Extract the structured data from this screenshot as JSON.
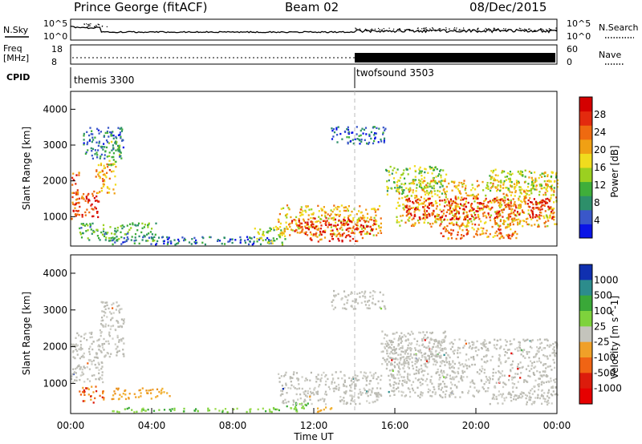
{
  "header": {
    "station": "Prince George (fitACF)",
    "beam": "Beam 02",
    "date": "08/Dec/2015"
  },
  "top_panels": {
    "nsky": {
      "label": "N.Sky",
      "tick_labels": [
        "10^5",
        "10^0"
      ],
      "right_label": "N.Search",
      "right_tick_labels": [
        "10^5",
        "10^0"
      ]
    },
    "freq": {
      "label_lines": [
        "Freq",
        "[MHz]"
      ],
      "tick_labels": [
        "18",
        "8"
      ],
      "right_label": "Nave",
      "right_tick_labels": [
        "60",
        "0"
      ]
    },
    "cpid": {
      "label": "CPID",
      "modes": [
        {
          "name": "themis 3300",
          "start_hour": 0,
          "end_hour": 14
        },
        {
          "name": "twofsound 3503",
          "start_hour": 14,
          "end_hour": 24
        }
      ]
    }
  },
  "chart_data": [
    {
      "type": "heatmap",
      "title": "",
      "quantity": "Power",
      "xlabel": "",
      "ylabel": "Slant Range [km]",
      "xlim": [
        0,
        24
      ],
      "ylim": [
        180,
        4500
      ],
      "y_ticks": [
        1000,
        2000,
        3000,
        4000
      ],
      "colorbar": {
        "label": "Power [dB]",
        "range": [
          0,
          32
        ],
        "tick_labels": [
          "4",
          "8",
          "12",
          "16",
          "20",
          "24",
          "28"
        ],
        "colors": [
          "#0a14e6",
          "#3a57c9",
          "#2d8f6a",
          "#3fae3a",
          "#9bd020",
          "#f0dc1e",
          "#f0a014",
          "#ef6a10",
          "#e32a0e",
          "#d40000"
        ]
      },
      "regions": [
        {
          "t": [
            0.0,
            0.4
          ],
          "r": [
            900,
            2300
          ],
          "v": 24
        },
        {
          "t": [
            0.2,
            1.4
          ],
          "r": [
            950,
            1700
          ],
          "v": 27
        },
        {
          "t": [
            1.2,
            2.2
          ],
          "r": [
            1600,
            2500
          ],
          "v": 21
        },
        {
          "t": [
            1.8,
            2.4
          ],
          "r": [
            2400,
            3100
          ],
          "v": 14
        },
        {
          "t": [
            0.6,
            2.6
          ],
          "r": [
            2600,
            3500
          ],
          "v": 7
        },
        {
          "t": [
            0.4,
            4.2
          ],
          "r": [
            300,
            800
          ],
          "v": 11
        },
        {
          "t": [
            2.0,
            10.0
          ],
          "r": [
            200,
            420
          ],
          "v": 6
        },
        {
          "t": [
            9.0,
            10.6
          ],
          "r": [
            200,
            700
          ],
          "v": 14
        },
        {
          "t": [
            10.2,
            15.3
          ],
          "r": [
            450,
            1300
          ],
          "v": 19
        },
        {
          "t": [
            10.8,
            15.0
          ],
          "r": [
            500,
            950
          ],
          "v": 28
        },
        {
          "t": [
            11.5,
            14.5
          ],
          "r": [
            280,
            520
          ],
          "v": 25
        },
        {
          "t": [
            12.8,
            15.5
          ],
          "r": [
            3000,
            3500
          ],
          "v": 6
        },
        {
          "t": [
            15.5,
            18.5
          ],
          "r": [
            1600,
            2400
          ],
          "v": 13
        },
        {
          "t": [
            16.0,
            24.0
          ],
          "r": [
            700,
            2000
          ],
          "v": 19
        },
        {
          "t": [
            16.5,
            23.8
          ],
          "r": [
            900,
            1500
          ],
          "v": 28
        },
        {
          "t": [
            18.0,
            22.0
          ],
          "r": [
            350,
            800
          ],
          "v": 23
        },
        {
          "t": [
            20.5,
            24.0
          ],
          "r": [
            1700,
            2300
          ],
          "v": 16
        }
      ]
    },
    {
      "type": "heatmap",
      "title": "",
      "quantity": "Velocity",
      "xlabel": "Time UT",
      "ylabel": "Slant Range [km]",
      "xlim": [
        0,
        24
      ],
      "ylim": [
        180,
        4500
      ],
      "y_ticks": [
        1000,
        2000,
        3000,
        4000
      ],
      "x_tick_labels": [
        "00:00",
        "04:00",
        "08:00",
        "12:00",
        "16:00",
        "20:00",
        "00:00"
      ],
      "x_ticks": [
        0,
        4,
        8,
        12,
        16,
        20,
        24
      ],
      "colorbar": {
        "label": "Velocity [m s^-1]",
        "tick_labels": [
          "1000",
          "500",
          "100",
          "25",
          "-25",
          "-100",
          "-500",
          "-1000"
        ],
        "colors": [
          "#1030b0",
          "#2c8c8c",
          "#3aa838",
          "#7ed23c",
          "#c4c4bc",
          "#f0a028",
          "#f06414",
          "#dc1c0c",
          "#e60000"
        ]
      },
      "regions": [
        {
          "t": [
            0.0,
            1.6
          ],
          "r": [
            1000,
            2400
          ],
          "c": "gray"
        },
        {
          "t": [
            1.4,
            2.6
          ],
          "r": [
            1700,
            3200
          ],
          "c": "gray"
        },
        {
          "t": [
            0.4,
            1.6
          ],
          "r": [
            450,
            900
          ],
          "c": "neg"
        },
        {
          "t": [
            2.0,
            4.6
          ],
          "r": [
            550,
            850
          ],
          "c": "negorange"
        },
        {
          "t": [
            4.6,
            5.0
          ],
          "r": [
            620,
            720
          ],
          "c": "negorange"
        },
        {
          "t": [
            2.0,
            11.5
          ],
          "r": [
            200,
            320
          ],
          "c": "green"
        },
        {
          "t": [
            10.5,
            12.0
          ],
          "r": [
            300,
            450
          ],
          "c": "green"
        },
        {
          "t": [
            10.2,
            15.3
          ],
          "r": [
            400,
            1300
          ],
          "c": "gray"
        },
        {
          "t": [
            12.0,
            13.0
          ],
          "r": [
            200,
            380
          ],
          "c": "negorange"
        },
        {
          "t": [
            12.8,
            15.5
          ],
          "r": [
            3000,
            3500
          ],
          "c": "gray"
        },
        {
          "t": [
            15.5,
            24.0
          ],
          "r": [
            600,
            2200
          ],
          "c": "gray"
        },
        {
          "t": [
            15.3,
            18.5
          ],
          "r": [
            1500,
            2400
          ],
          "c": "gray"
        },
        {
          "t": [
            20.5,
            23.8
          ],
          "r": [
            400,
            700
          ],
          "c": "gray"
        }
      ]
    }
  ]
}
